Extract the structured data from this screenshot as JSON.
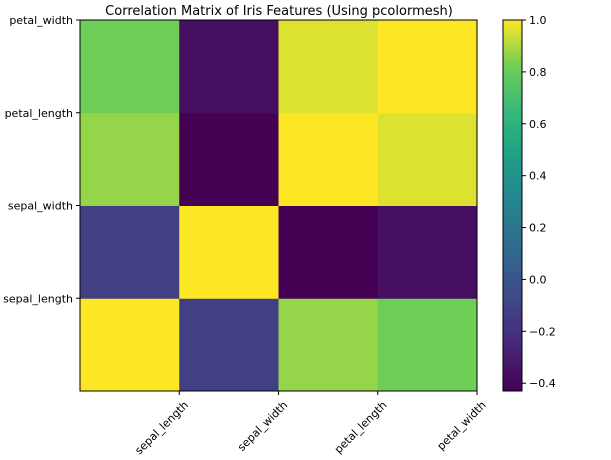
{
  "chart_data": {
    "type": "heatmap",
    "title": "Correlation Matrix of Iris Features (Using pcolormesh)",
    "x_categories": [
      "sepal_length",
      "sepal_width",
      "petal_length",
      "petal_width"
    ],
    "y_categories": [
      "sepal_length",
      "sepal_width",
      "petal_length",
      "petal_width"
    ],
    "values": [
      [
        1.0,
        -0.12,
        0.87,
        0.82
      ],
      [
        -0.12,
        1.0,
        -0.43,
        -0.37
      ],
      [
        0.87,
        -0.43,
        1.0,
        0.96
      ],
      [
        0.82,
        -0.37,
        0.96,
        1.0
      ]
    ],
    "colormap": "viridis",
    "colorbar": {
      "min": -0.43,
      "max": 1.0,
      "ticks": [
        -0.4,
        -0.2,
        0.0,
        0.2,
        0.4,
        0.6,
        0.8,
        1.0
      ],
      "tick_labels": [
        "−0.4",
        "−0.2",
        "0.0",
        "0.2",
        "0.4",
        "0.6",
        "0.8",
        "1.0"
      ]
    },
    "xlabel": "",
    "ylabel": "",
    "grid": false,
    "x_tick_rotation_deg": 45
  }
}
